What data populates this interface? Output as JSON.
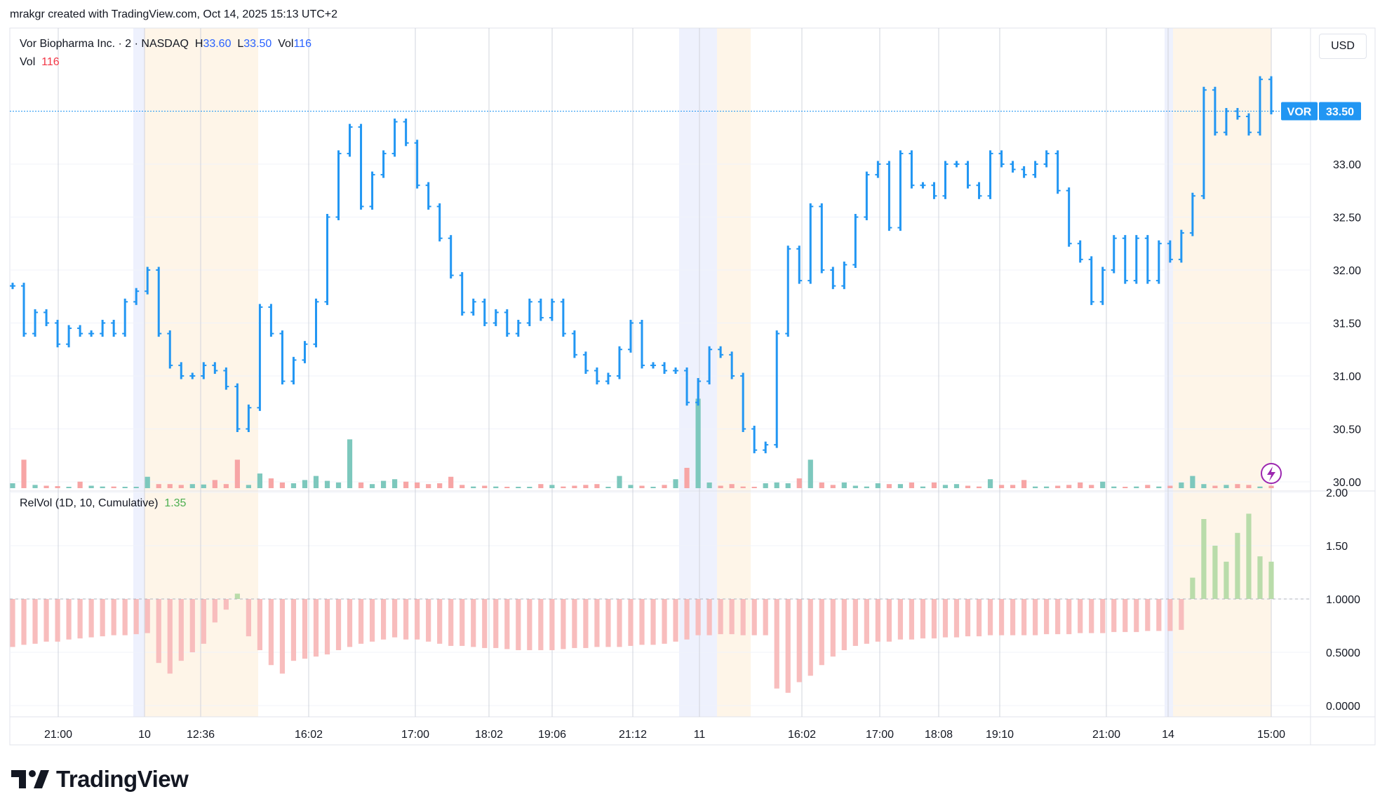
{
  "header": {
    "credit": "mrakgr created with TradingView.com, Oct 14, 2025 15:13 UTC+2"
  },
  "legend": {
    "symbol": "Vor Biopharma Inc. · 2 · NASDAQ",
    "high_label": "H",
    "high_value": "33.60",
    "low_label": "L",
    "low_value": "33.50",
    "vol_label": "Vol",
    "vol_value": "116",
    "vol_row_label": "Vol",
    "vol_row_value": "116",
    "relvol_label": "RelVol (1D, 10, Cumulative)",
    "relvol_value": "1.35"
  },
  "price_axis": {
    "currency": "USD",
    "ticks": [
      "33.00",
      "32.50",
      "32.00",
      "31.50",
      "31.00",
      "30.50",
      "30.00"
    ],
    "last_symbol": "VOR",
    "last_price": "33.50"
  },
  "relvol_axis": {
    "ticks": [
      "2.00",
      "1.50",
      "1.0000",
      "0.5000",
      "0.0000"
    ]
  },
  "time_axis": {
    "ticks": [
      "21:00",
      "10",
      "12:36",
      "16:02",
      "17:00",
      "18:02",
      "19:06",
      "21:12",
      "11",
      "16:02",
      "17:00",
      "18:08",
      "19:10",
      "21:00",
      "14",
      "15:00"
    ]
  },
  "brand": {
    "name": "TradingView"
  },
  "colors": {
    "price_bar": "#2196f3",
    "volume_up": "#7dc8bd",
    "volume_down": "#f7a5a5",
    "relvol_below": "#f8bdbd",
    "relvol_above": "#b9dcaa",
    "premarket": "#eef1fd",
    "afterhours": "#fef5e8"
  },
  "chart_data": {
    "type": "bar",
    "title": "Vor Biopharma Inc. · 2 · NASDAQ",
    "price_range": [
      30.0,
      34.0
    ],
    "relvol_range": [
      0.0,
      2.0
    ],
    "last_price": 33.5,
    "price_path": [
      31.85,
      31.4,
      31.6,
      31.5,
      31.3,
      31.45,
      31.4,
      31.4,
      31.5,
      31.4,
      31.7,
      31.8,
      32.0,
      31.4,
      31.1,
      31.0,
      31.0,
      31.1,
      31.05,
      30.9,
      30.5,
      30.7,
      31.65,
      31.4,
      30.95,
      31.15,
      31.3,
      31.7,
      32.5,
      33.1,
      33.35,
      32.6,
      32.9,
      33.1,
      33.4,
      33.2,
      32.8,
      32.6,
      32.3,
      31.95,
      31.6,
      31.7,
      31.5,
      31.6,
      31.4,
      31.5,
      31.7,
      31.55,
      31.7,
      31.4,
      31.2,
      31.05,
      30.95,
      31.0,
      31.25,
      31.5,
      31.1,
      31.1,
      31.05,
      31.05,
      30.75,
      30.95,
      31.25,
      31.2,
      31.0,
      30.5,
      30.3,
      30.35,
      31.4,
      32.2,
      31.9,
      32.6,
      32.0,
      31.85,
      32.05,
      32.5,
      32.9,
      33.0,
      32.4,
      33.1,
      32.8,
      32.8,
      32.7,
      33.0,
      33.0,
      32.8,
      32.7,
      33.1,
      33.0,
      32.95,
      32.9,
      33.0,
      33.1,
      32.75,
      32.25,
      32.1,
      31.7,
      32.0,
      32.3,
      31.9,
      32.3,
      31.9,
      32.25,
      32.1,
      32.35,
      32.7,
      33.7,
      33.3,
      33.5,
      33.45,
      33.3,
      33.8,
      33.5
    ],
    "volume": [
      12,
      70,
      8,
      6,
      5,
      3,
      16,
      6,
      4,
      4,
      1,
      2,
      28,
      10,
      10,
      8,
      10,
      9,
      20,
      10,
      70,
      8,
      36,
      24,
      14,
      12,
      20,
      30,
      18,
      14,
      120,
      14,
      10,
      18,
      22,
      16,
      14,
      10,
      12,
      28,
      8,
      4,
      6,
      4,
      2,
      3,
      2,
      10,
      8,
      4,
      6,
      8,
      10,
      2,
      30,
      8,
      6,
      2,
      8,
      22,
      50,
      220,
      14,
      6,
      10,
      4,
      2,
      12,
      14,
      12,
      24,
      70,
      14,
      8,
      14,
      6,
      4,
      12,
      10,
      10,
      14,
      4,
      14,
      8,
      10,
      6,
      4,
      22,
      8,
      8,
      20,
      4,
      4,
      6,
      8,
      14,
      8,
      16,
      4,
      2,
      4,
      8,
      4,
      6,
      14,
      30,
      10,
      6,
      8,
      10,
      8,
      4,
      6
    ],
    "relvol": [
      0.55,
      0.57,
      0.58,
      0.6,
      0.6,
      0.62,
      0.63,
      0.64,
      0.65,
      0.66,
      0.66,
      0.67,
      0.68,
      0.4,
      0.3,
      0.42,
      0.5,
      0.58,
      0.78,
      0.9,
      1.05,
      0.65,
      0.52,
      0.38,
      0.3,
      0.42,
      0.44,
      0.46,
      0.48,
      0.52,
      0.55,
      0.58,
      0.6,
      0.62,
      0.64,
      0.62,
      0.62,
      0.6,
      0.58,
      0.56,
      0.56,
      0.55,
      0.54,
      0.54,
      0.53,
      0.52,
      0.52,
      0.52,
      0.52,
      0.53,
      0.54,
      0.54,
      0.55,
      0.55,
      0.55,
      0.56,
      0.57,
      0.57,
      0.58,
      0.6,
      0.62,
      0.66,
      0.66,
      0.67,
      0.67,
      0.66,
      0.66,
      0.66,
      0.16,
      0.12,
      0.22,
      0.28,
      0.38,
      0.46,
      0.52,
      0.56,
      0.58,
      0.6,
      0.6,
      0.62,
      0.62,
      0.63,
      0.63,
      0.64,
      0.64,
      0.65,
      0.65,
      0.66,
      0.66,
      0.66,
      0.66,
      0.66,
      0.67,
      0.67,
      0.67,
      0.68,
      0.68,
      0.68,
      0.69,
      0.69,
      0.69,
      0.7,
      0.7,
      0.7,
      0.71,
      1.2,
      1.75,
      1.5,
      1.35,
      1.62,
      1.8,
      1.4,
      1.35
    ]
  }
}
